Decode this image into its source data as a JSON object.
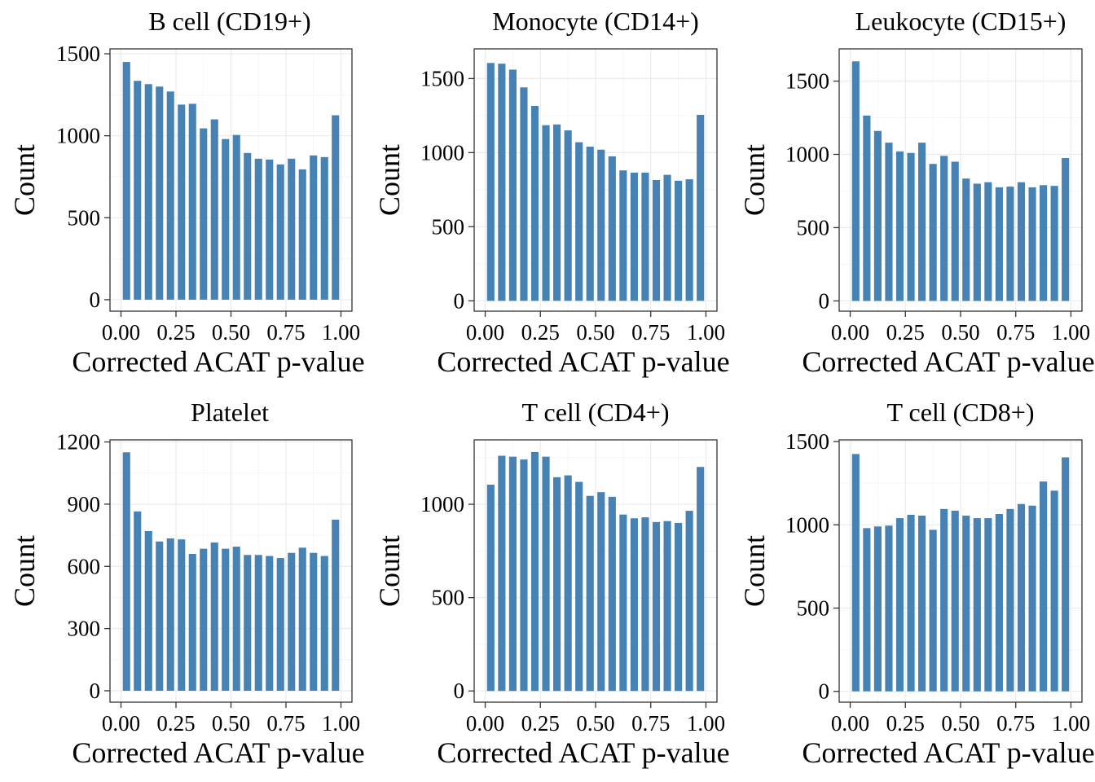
{
  "bar_color": "#4682B4",
  "chart_data": [
    {
      "type": "bar",
      "title": "B cell (CD19+)",
      "xlabel": "Corrected ACAT p-value",
      "ylabel": "Count",
      "x_centers": [
        0.025,
        0.075,
        0.125,
        0.175,
        0.225,
        0.275,
        0.325,
        0.375,
        0.425,
        0.475,
        0.525,
        0.575,
        0.625,
        0.675,
        0.725,
        0.775,
        0.825,
        0.875,
        0.925,
        0.975
      ],
      "values": [
        1450,
        1335,
        1315,
        1300,
        1270,
        1190,
        1195,
        1045,
        1100,
        980,
        1005,
        895,
        860,
        855,
        825,
        860,
        795,
        880,
        870,
        1125
      ],
      "xlim": [
        -0.05,
        1.05
      ],
      "ylim": [
        -70,
        1530
      ],
      "xticks": [
        0,
        0.25,
        0.5,
        0.75,
        1
      ],
      "xtick_labels": [
        "0.00",
        "0.25",
        "0.50",
        "0.75",
        "1.00"
      ],
      "yticks": [
        0,
        500,
        1000,
        1500
      ],
      "ytick_labels": [
        "0",
        "500",
        "1000",
        "1500"
      ],
      "grid": true
    },
    {
      "type": "bar",
      "title": "Monocyte (CD14+)",
      "xlabel": "Corrected ACAT p-value",
      "ylabel": "Count",
      "x_centers": [
        0.025,
        0.075,
        0.125,
        0.175,
        0.225,
        0.275,
        0.325,
        0.375,
        0.425,
        0.475,
        0.525,
        0.575,
        0.625,
        0.675,
        0.725,
        0.775,
        0.825,
        0.875,
        0.925,
        0.975
      ],
      "values": [
        1605,
        1600,
        1560,
        1440,
        1315,
        1185,
        1190,
        1150,
        1070,
        1040,
        1020,
        975,
        880,
        865,
        865,
        815,
        850,
        810,
        820,
        1255
      ],
      "xlim": [
        -0.05,
        1.05
      ],
      "ylim": [
        -70,
        1700
      ],
      "xticks": [
        0,
        0.25,
        0.5,
        0.75,
        1
      ],
      "xtick_labels": [
        "0.00",
        "0.25",
        "0.50",
        "0.75",
        "1.00"
      ],
      "yticks": [
        0,
        500,
        1000,
        1500
      ],
      "ytick_labels": [
        "0",
        "500",
        "1000",
        "1500"
      ],
      "grid": true
    },
    {
      "type": "bar",
      "title": "Leukocyte (CD15+)",
      "xlabel": "Corrected ACAT p-value",
      "ylabel": "Count",
      "x_centers": [
        0.025,
        0.075,
        0.125,
        0.175,
        0.225,
        0.275,
        0.325,
        0.375,
        0.425,
        0.475,
        0.525,
        0.575,
        0.625,
        0.675,
        0.725,
        0.775,
        0.825,
        0.875,
        0.925,
        0.975
      ],
      "values": [
        1635,
        1265,
        1160,
        1080,
        1020,
        1010,
        1080,
        935,
        990,
        950,
        835,
        800,
        810,
        775,
        780,
        810,
        775,
        790,
        785,
        975
      ],
      "xlim": [
        -0.05,
        1.05
      ],
      "ylim": [
        -70,
        1720
      ],
      "xticks": [
        0,
        0.25,
        0.5,
        0.75,
        1
      ],
      "xtick_labels": [
        "0.00",
        "0.25",
        "0.50",
        "0.75",
        "1.00"
      ],
      "yticks": [
        0,
        500,
        1000,
        1500
      ],
      "ytick_labels": [
        "0",
        "500",
        "1000",
        "1500"
      ],
      "grid": true
    },
    {
      "type": "bar",
      "title": "Platelet",
      "xlabel": "Corrected ACAT p-value",
      "ylabel": "Count",
      "x_centers": [
        0.025,
        0.075,
        0.125,
        0.175,
        0.225,
        0.275,
        0.325,
        0.375,
        0.425,
        0.475,
        0.525,
        0.575,
        0.625,
        0.675,
        0.725,
        0.775,
        0.825,
        0.875,
        0.925,
        0.975
      ],
      "values": [
        1150,
        865,
        770,
        720,
        735,
        730,
        660,
        685,
        715,
        685,
        695,
        655,
        655,
        650,
        640,
        665,
        690,
        665,
        650,
        825
      ],
      "xlim": [
        -0.05,
        1.05
      ],
      "ylim": [
        -55,
        1210
      ],
      "xticks": [
        0,
        0.25,
        0.5,
        0.75,
        1
      ],
      "xtick_labels": [
        "0.00",
        "0.25",
        "0.50",
        "0.75",
        "1.00"
      ],
      "yticks": [
        0,
        300,
        600,
        900,
        1200
      ],
      "ytick_labels": [
        "0",
        "300",
        "600",
        "900",
        "1200"
      ],
      "grid": true
    },
    {
      "type": "bar",
      "title": "T cell (CD4+)",
      "xlabel": "Corrected ACAT p-value",
      "ylabel": "Count",
      "x_centers": [
        0.025,
        0.075,
        0.125,
        0.175,
        0.225,
        0.275,
        0.325,
        0.375,
        0.425,
        0.475,
        0.525,
        0.575,
        0.625,
        0.675,
        0.725,
        0.775,
        0.825,
        0.875,
        0.925,
        0.975
      ],
      "values": [
        1105,
        1260,
        1255,
        1240,
        1280,
        1255,
        1145,
        1155,
        1120,
        1045,
        1065,
        1040,
        945,
        925,
        930,
        905,
        910,
        900,
        965,
        1200
      ],
      "xlim": [
        -0.05,
        1.05
      ],
      "ylim": [
        -60,
        1345
      ],
      "xticks": [
        0,
        0.25,
        0.5,
        0.75,
        1
      ],
      "xtick_labels": [
        "0.00",
        "0.25",
        "0.50",
        "0.75",
        "1.00"
      ],
      "yticks": [
        0,
        500,
        1000
      ],
      "ytick_labels": [
        "0",
        "500",
        "1000"
      ],
      "grid": true
    },
    {
      "type": "bar",
      "title": "T cell (CD8+)",
      "xlabel": "Corrected ACAT p-value",
      "ylabel": "Count",
      "x_centers": [
        0.025,
        0.075,
        0.125,
        0.175,
        0.225,
        0.275,
        0.325,
        0.375,
        0.425,
        0.475,
        0.525,
        0.575,
        0.625,
        0.675,
        0.725,
        0.775,
        0.825,
        0.875,
        0.925,
        0.975
      ],
      "values": [
        1425,
        980,
        990,
        995,
        1040,
        1060,
        1055,
        970,
        1095,
        1085,
        1055,
        1040,
        1040,
        1065,
        1095,
        1125,
        1115,
        1260,
        1205,
        1405
      ],
      "xlim": [
        -0.05,
        1.05
      ],
      "ylim": [
        -65,
        1510
      ],
      "xticks": [
        0,
        0.25,
        0.5,
        0.75,
        1
      ],
      "xtick_labels": [
        "0.00",
        "0.25",
        "0.50",
        "0.75",
        "1.00"
      ],
      "yticks": [
        0,
        500,
        1000,
        1500
      ],
      "ytick_labels": [
        "0",
        "500",
        "1000",
        "1500"
      ],
      "grid": true
    }
  ]
}
